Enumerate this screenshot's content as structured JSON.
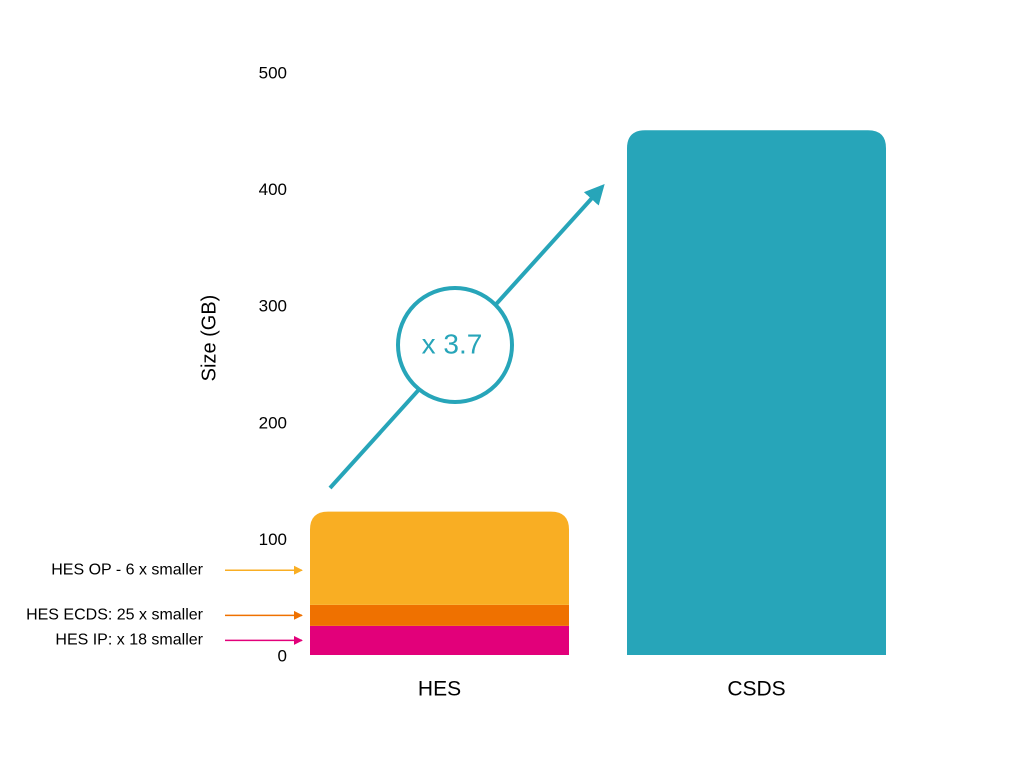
{
  "chart_data": {
    "type": "stacked-bar",
    "y_label": "Size (GB)",
    "annotation": "x 3.7",
    "categories": [
      "HES",
      "CSDS"
    ],
    "series": [
      {
        "name": "HES IP: x 18 smaller",
        "color": "#e2007a",
        "values": [
          25,
          null
        ]
      },
      {
        "name": "HES ECDS: 25 x smaller",
        "color": "#ef7100",
        "values": [
          18,
          null
        ]
      },
      {
        "name": "HES OP - 6 x smaller",
        "color": "#f9ae23",
        "values": [
          80,
          null
        ]
      },
      {
        "color": "#27a5b9",
        "values": [
          null,
          450
        ]
      }
    ],
    "ylim": [
      0,
      500
    ],
    "yticks": [
      0,
      100,
      200,
      300,
      400,
      500
    ],
    "grid": false
  }
}
